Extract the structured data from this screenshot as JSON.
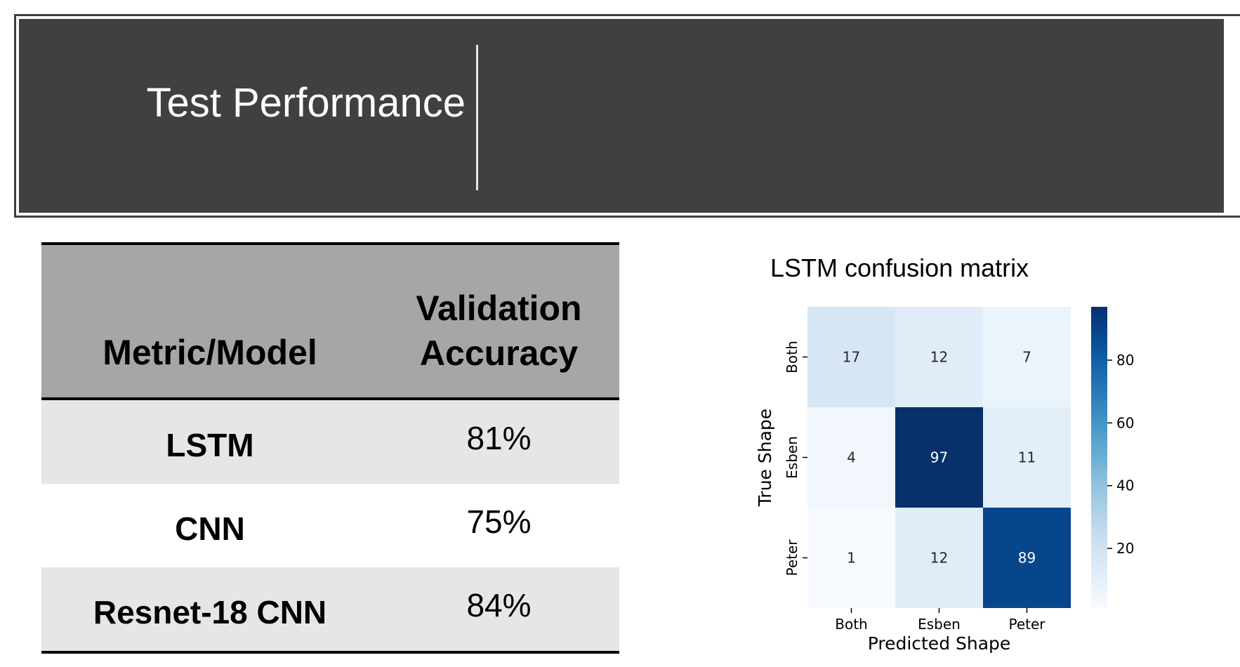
{
  "banner": {
    "title": "Test Performance"
  },
  "table": {
    "headers": [
      "Metric/Model",
      "Validation",
      "Accuracy"
    ],
    "rows": [
      {
        "model": "LSTM",
        "accuracy": "81%"
      },
      {
        "model": "CNN",
        "accuracy": "75%"
      },
      {
        "model": "Resnet-18 CNN",
        "accuracy": "84%"
      }
    ]
  },
  "chart_data": {
    "type": "heatmap",
    "title": "LSTM confusion matrix",
    "xlabel": "Predicted Shape",
    "ylabel": "True Shape",
    "x_categories": [
      "Both",
      "Esben",
      "Peter"
    ],
    "y_categories": [
      "Both",
      "Esben",
      "Peter"
    ],
    "values": [
      [
        17,
        12,
        7
      ],
      [
        4,
        97,
        11
      ],
      [
        1,
        12,
        89
      ]
    ],
    "colorbar": {
      "min": 1,
      "max": 97,
      "ticks": [
        20,
        40,
        60,
        80
      ]
    },
    "colormap": "Blues"
  },
  "colors": {
    "banner_bg": "#404040",
    "table_header_bg": "#a6a6a6",
    "table_row_shade": "#e6e6e6"
  }
}
